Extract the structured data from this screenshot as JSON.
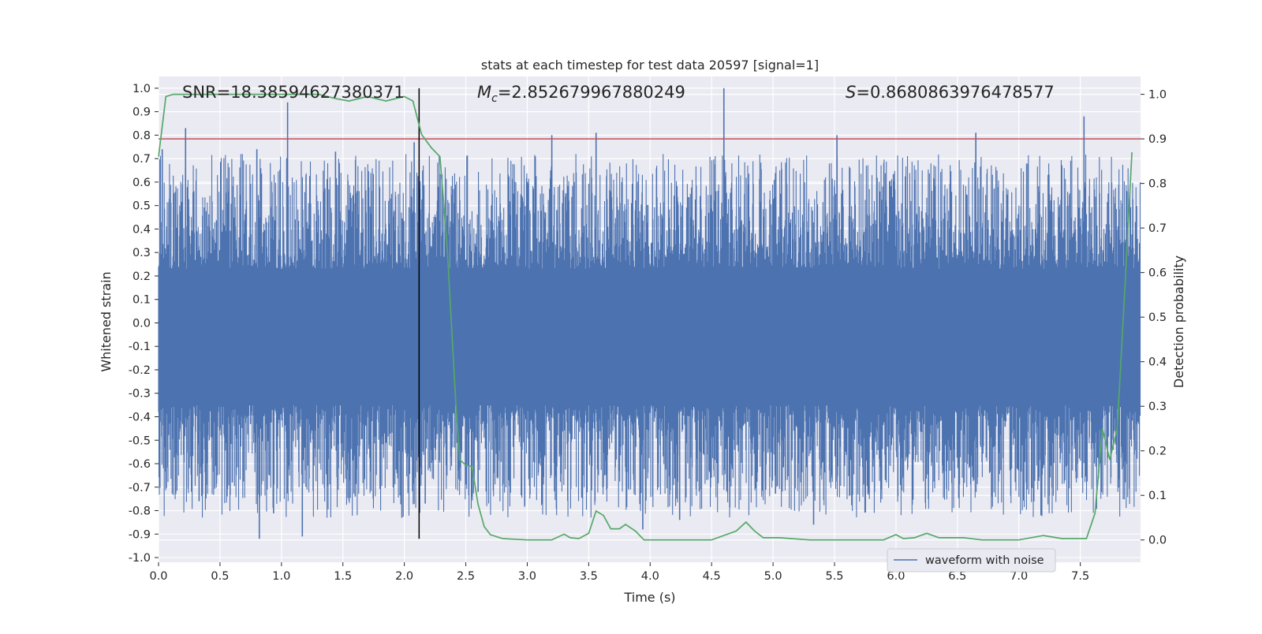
{
  "chart_data": {
    "type": "line",
    "title": "stats at each timestep for test data 20597 [signal=1]",
    "xlabel": "Time (s)",
    "ylabel_left": "Whitened strain",
    "ylabel_right": "Detection probability",
    "xlim": [
      0.0,
      7.99
    ],
    "ylim_left": [
      -1.02,
      1.05
    ],
    "ylim_right": [
      -0.05,
      1.04
    ],
    "x_ticks": [
      "0.0",
      "0.5",
      "1.0",
      "1.5",
      "2.0",
      "2.5",
      "3.0",
      "3.5",
      "4.0",
      "4.5",
      "5.0",
      "5.5",
      "6.0",
      "6.5",
      "7.0",
      "7.5"
    ],
    "y_ticks_left": [
      "1.0",
      "0.9",
      "0.8",
      "0.7",
      "0.6",
      "0.5",
      "0.4",
      "0.3",
      "0.2",
      "0.1",
      "0.0",
      "-0.1",
      "-0.2",
      "-0.3",
      "-0.4",
      "-0.5",
      "-0.6",
      "-0.7",
      "-0.8",
      "-0.9",
      "-1.0"
    ],
    "y_ticks_right": [
      "1.0",
      "0.9",
      "0.8",
      "0.7",
      "0.6",
      "0.5",
      "0.4",
      "0.3",
      "0.2",
      "0.1",
      "0.0"
    ],
    "grid": true,
    "legend": {
      "entries": [
        "waveform with noise"
      ],
      "placement": "lower-right"
    },
    "annotations": {
      "snr": "SNR=18.38594627380371",
      "mc_symbol": "M",
      "mc_sub": "c",
      "mc_value": "=2.852679967880249",
      "s_symbol": "S",
      "s_value": "=0.8680863976478577"
    },
    "threshold": {
      "axis": "right",
      "value": 0.9,
      "color": "#c44e52"
    },
    "marker_time": 2.12,
    "colors": {
      "waveform": "#4c72b0",
      "probability": "#55a868",
      "threshold": "#c44e52",
      "marker": "#000000",
      "background": "#eaeaf2"
    },
    "series": [
      {
        "name": "waveform with noise",
        "axis": "left",
        "style": "noise",
        "envelope": {
          "core_upper": 0.23,
          "core_lower": -0.35,
          "typical_peak": 0.6
        },
        "peaks": [
          {
            "x": 0.03,
            "y": 0.74
          },
          {
            "x": 0.22,
            "y": 0.83
          },
          {
            "x": 0.8,
            "y": 0.74
          },
          {
            "x": 1.05,
            "y": 0.94
          },
          {
            "x": 1.44,
            "y": 0.73
          },
          {
            "x": 2.08,
            "y": 0.77
          },
          {
            "x": 3.2,
            "y": 0.8
          },
          {
            "x": 3.56,
            "y": 0.81
          },
          {
            "x": 4.6,
            "y": 1.0
          },
          {
            "x": 5.52,
            "y": 0.8
          },
          {
            "x": 6.65,
            "y": 0.81
          },
          {
            "x": 7.53,
            "y": 0.88
          },
          {
            "x": 0.82,
            "y": -0.92
          },
          {
            "x": 1.17,
            "y": -0.91
          },
          {
            "x": 1.98,
            "y": -0.83
          },
          {
            "x": 3.94,
            "y": -0.88
          },
          {
            "x": 4.24,
            "y": -0.84
          },
          {
            "x": 5.33,
            "y": -0.86
          },
          {
            "x": 7.18,
            "y": -0.82
          },
          {
            "x": 0.33,
            "y": -0.76
          },
          {
            "x": 1.6,
            "y": -0.74
          },
          {
            "x": 2.17,
            "y": -0.77
          },
          {
            "x": 0.6,
            "y": -0.68
          },
          {
            "x": 2.6,
            "y": -0.72
          }
        ]
      },
      {
        "name": "detection probability",
        "axis": "right",
        "points": [
          {
            "x": 0.0,
            "y": 0.86
          },
          {
            "x": 0.06,
            "y": 0.995
          },
          {
            "x": 0.12,
            "y": 1.0
          },
          {
            "x": 1.3,
            "y": 1.0
          },
          {
            "x": 1.45,
            "y": 0.99
          },
          {
            "x": 1.55,
            "y": 0.985
          },
          {
            "x": 1.7,
            "y": 0.995
          },
          {
            "x": 1.85,
            "y": 0.985
          },
          {
            "x": 2.0,
            "y": 0.995
          },
          {
            "x": 2.07,
            "y": 0.985
          },
          {
            "x": 2.14,
            "y": 0.91
          },
          {
            "x": 2.22,
            "y": 0.88
          },
          {
            "x": 2.29,
            "y": 0.86
          },
          {
            "x": 2.35,
            "y": 0.65
          },
          {
            "x": 2.42,
            "y": 0.3
          },
          {
            "x": 2.45,
            "y": 0.18
          },
          {
            "x": 2.5,
            "y": 0.168
          },
          {
            "x": 2.55,
            "y": 0.165
          },
          {
            "x": 2.6,
            "y": 0.08
          },
          {
            "x": 2.65,
            "y": 0.03
          },
          {
            "x": 2.7,
            "y": 0.012
          },
          {
            "x": 2.8,
            "y": 0.003
          },
          {
            "x": 3.0,
            "y": 0.0
          },
          {
            "x": 3.2,
            "y": 0.0
          },
          {
            "x": 3.3,
            "y": 0.013
          },
          {
            "x": 3.35,
            "y": 0.005
          },
          {
            "x": 3.42,
            "y": 0.003
          },
          {
            "x": 3.5,
            "y": 0.015
          },
          {
            "x": 3.56,
            "y": 0.065
          },
          {
            "x": 3.62,
            "y": 0.055
          },
          {
            "x": 3.68,
            "y": 0.025
          },
          {
            "x": 3.75,
            "y": 0.025
          },
          {
            "x": 3.8,
            "y": 0.035
          },
          {
            "x": 3.88,
            "y": 0.02
          },
          {
            "x": 3.95,
            "y": 0.0
          },
          {
            "x": 4.2,
            "y": 0.0
          },
          {
            "x": 4.5,
            "y": 0.0
          },
          {
            "x": 4.7,
            "y": 0.02
          },
          {
            "x": 4.78,
            "y": 0.04
          },
          {
            "x": 4.85,
            "y": 0.02
          },
          {
            "x": 4.92,
            "y": 0.005
          },
          {
            "x": 5.05,
            "y": 0.005
          },
          {
            "x": 5.3,
            "y": 0.0
          },
          {
            "x": 5.9,
            "y": 0.0
          },
          {
            "x": 6.0,
            "y": 0.012
          },
          {
            "x": 6.06,
            "y": 0.003
          },
          {
            "x": 6.15,
            "y": 0.005
          },
          {
            "x": 6.25,
            "y": 0.015
          },
          {
            "x": 6.35,
            "y": 0.005
          },
          {
            "x": 6.55,
            "y": 0.005
          },
          {
            "x": 6.7,
            "y": 0.0
          },
          {
            "x": 7.0,
            "y": 0.0
          },
          {
            "x": 7.2,
            "y": 0.01
          },
          {
            "x": 7.35,
            "y": 0.003
          },
          {
            "x": 7.55,
            "y": 0.003
          },
          {
            "x": 7.62,
            "y": 0.06
          },
          {
            "x": 7.68,
            "y": 0.25
          },
          {
            "x": 7.74,
            "y": 0.18
          },
          {
            "x": 7.8,
            "y": 0.25
          },
          {
            "x": 7.86,
            "y": 0.55
          },
          {
            "x": 7.92,
            "y": 0.87
          }
        ]
      }
    ]
  }
}
